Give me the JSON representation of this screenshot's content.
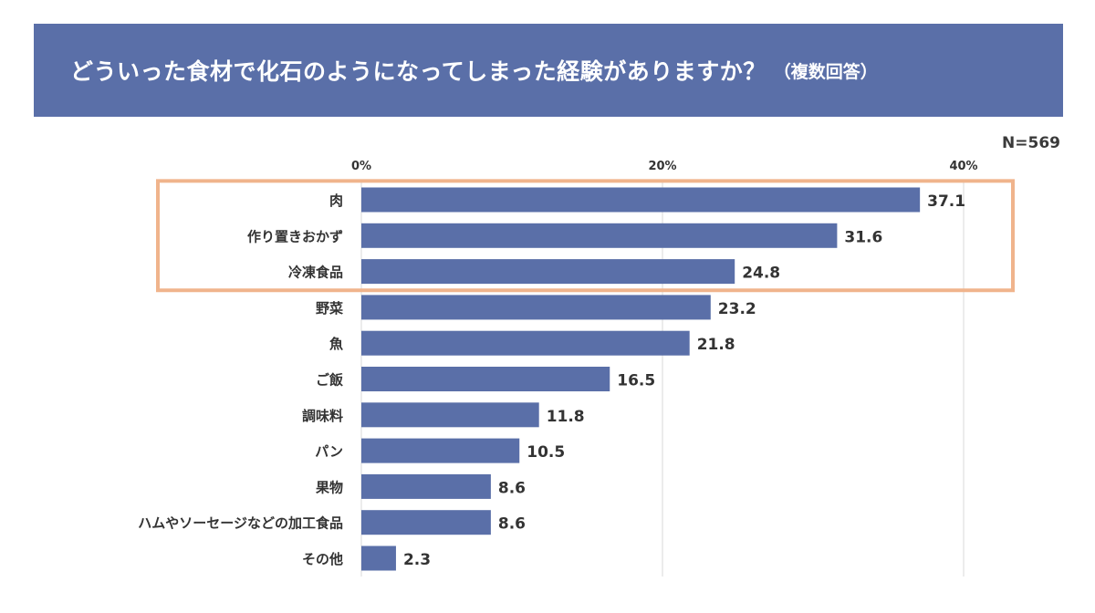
{
  "title": "どういった食材で化石のようになってしまった経験がありますか？",
  "title_note": "（複数回答）",
  "n_label": "N=569",
  "colors": {
    "banner": "#5a6fa8",
    "bar": "#5a6fa8",
    "highlight_box": "#f0b48c",
    "gridline": "#d9d9d9"
  },
  "chart_data": {
    "type": "bar",
    "orientation": "horizontal",
    "title": "どういった食材で化石のようになってしまった経験がありますか？（複数回答）",
    "xlabel": "",
    "ylabel": "",
    "xlim": [
      0,
      40
    ],
    "ticks": [
      0,
      20,
      40
    ],
    "tick_labels": [
      "0%",
      "20%",
      "40%"
    ],
    "categories": [
      "肉",
      "作り置きおかず",
      "冷凍食品",
      "野菜",
      "魚",
      "ご飯",
      "調味料",
      "パン",
      "果物",
      "ハムやソーセージなどの加工食品",
      "その他"
    ],
    "values": [
      37.1,
      31.6,
      24.8,
      23.2,
      21.8,
      16.5,
      11.8,
      10.5,
      8.6,
      8.6,
      2.3
    ],
    "value_labels": [
      "37.1",
      "31.6",
      "24.8",
      "23.2",
      "21.8",
      "16.5",
      "11.8",
      "10.5",
      "8.6",
      "8.6",
      "2.3"
    ],
    "highlighted_categories": [
      "肉",
      "作り置きおかず",
      "冷凍食品"
    ]
  }
}
